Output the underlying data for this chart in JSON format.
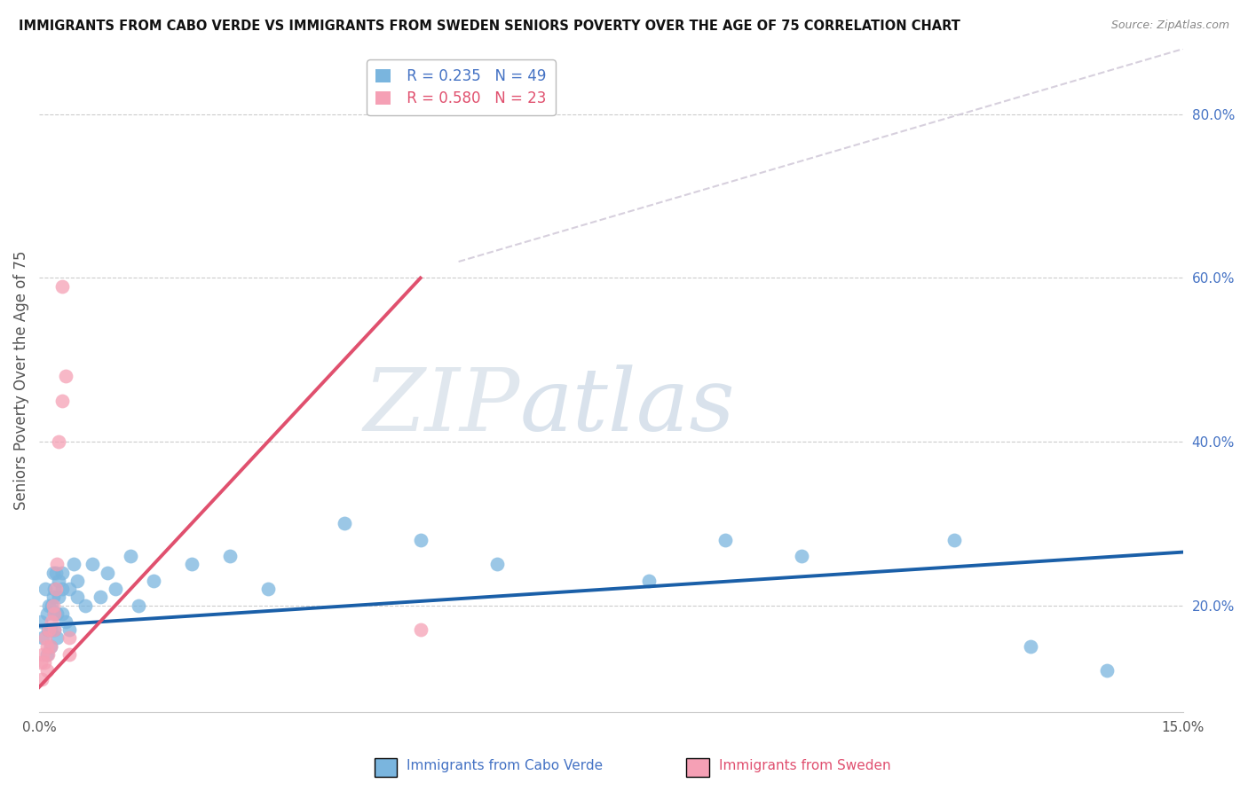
{
  "title": "IMMIGRANTS FROM CABO VERDE VS IMMIGRANTS FROM SWEDEN SENIORS POVERTY OVER THE AGE OF 75 CORRELATION CHART",
  "source": "Source: ZipAtlas.com",
  "ylabel": "Seniors Poverty Over the Age of 75",
  "xlim": [
    0.0,
    0.15
  ],
  "ylim": [
    0.07,
    0.88
  ],
  "xticks": [
    0.0,
    0.05,
    0.1,
    0.15
  ],
  "xticklabels": [
    "0.0%",
    "",
    "",
    "15.0%"
  ],
  "yticks_right": [
    0.2,
    0.4,
    0.6,
    0.8
  ],
  "ytick_labels_right": [
    "20.0%",
    "40.0%",
    "60.0%",
    "80.0%"
  ],
  "cabo_verde_R": 0.235,
  "cabo_verde_N": 49,
  "sweden_R": 0.58,
  "sweden_N": 23,
  "cabo_verde_color": "#7ab5de",
  "sweden_color": "#f5a0b5",
  "cabo_verde_line_color": "#1a5fa8",
  "sweden_line_color": "#e0506e",
  "diag_line_color": "#d0c8d8",
  "watermark_zip": "ZIP",
  "watermark_atlas": "atlas",
  "cabo_verde_x": [
    0.0002,
    0.0005,
    0.0008,
    0.001,
    0.001,
    0.0012,
    0.0013,
    0.0015,
    0.0015,
    0.0016,
    0.0018,
    0.0018,
    0.002,
    0.002,
    0.002,
    0.0022,
    0.0023,
    0.0023,
    0.0025,
    0.0025,
    0.003,
    0.003,
    0.003,
    0.0035,
    0.004,
    0.004,
    0.0045,
    0.005,
    0.005,
    0.006,
    0.007,
    0.008,
    0.009,
    0.01,
    0.012,
    0.013,
    0.015,
    0.02,
    0.025,
    0.03,
    0.04,
    0.05,
    0.06,
    0.08,
    0.09,
    0.1,
    0.12,
    0.13,
    0.14
  ],
  "cabo_verde_y": [
    0.18,
    0.16,
    0.22,
    0.14,
    0.19,
    0.17,
    0.2,
    0.17,
    0.15,
    0.2,
    0.24,
    0.21,
    0.17,
    0.19,
    0.22,
    0.24,
    0.16,
    0.19,
    0.21,
    0.23,
    0.22,
    0.19,
    0.24,
    0.18,
    0.17,
    0.22,
    0.25,
    0.21,
    0.23,
    0.2,
    0.25,
    0.21,
    0.24,
    0.22,
    0.26,
    0.2,
    0.23,
    0.25,
    0.26,
    0.22,
    0.3,
    0.28,
    0.25,
    0.23,
    0.28,
    0.26,
    0.28,
    0.15,
    0.12
  ],
  "sweden_x": [
    0.0002,
    0.0003,
    0.0005,
    0.0007,
    0.0008,
    0.001,
    0.001,
    0.0012,
    0.0013,
    0.0015,
    0.0016,
    0.0018,
    0.002,
    0.002,
    0.0022,
    0.0023,
    0.0025,
    0.003,
    0.003,
    0.0035,
    0.004,
    0.004,
    0.05
  ],
  "sweden_y": [
    0.13,
    0.11,
    0.14,
    0.13,
    0.16,
    0.12,
    0.15,
    0.14,
    0.17,
    0.15,
    0.18,
    0.2,
    0.17,
    0.19,
    0.22,
    0.25,
    0.4,
    0.45,
    0.59,
    0.48,
    0.16,
    0.14,
    0.17
  ],
  "cabo_verde_line": {
    "x0": 0.0,
    "x1": 0.15,
    "y0": 0.175,
    "y1": 0.265
  },
  "sweden_line": {
    "x0": 0.0,
    "x1": 0.05,
    "y0": 0.1,
    "y1": 0.6
  },
  "diag_line": {
    "x0": 0.055,
    "x1": 0.15,
    "y0": 0.62,
    "y1": 0.88
  }
}
